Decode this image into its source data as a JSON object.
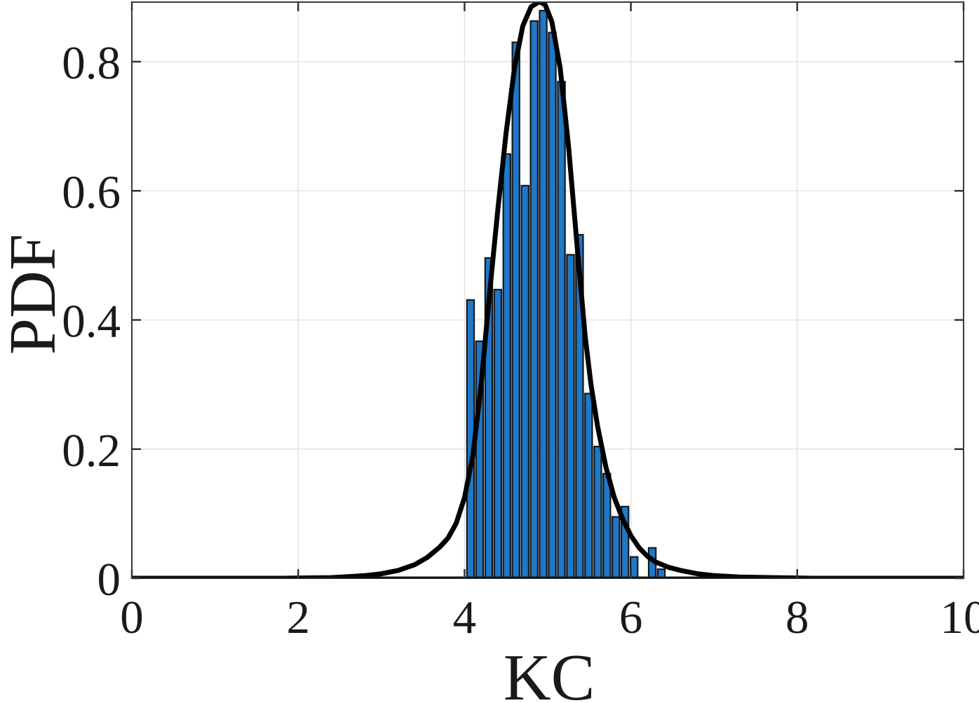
{
  "figure": {
    "kind": "matlab-style histogram with fitted pdf curve",
    "background": "#ffffff"
  },
  "chart_data": {
    "type": "bar",
    "subtype": "histogram-with-fit-line",
    "title": "",
    "xlabel": "KC",
    "ylabel": "PDF",
    "xlim": [
      0,
      10
    ],
    "ylim": [
      0,
      0.892
    ],
    "grid": true,
    "legend": "none",
    "x_ticks": [
      {
        "v": 0,
        "label": "0"
      },
      {
        "v": 2,
        "label": "2"
      },
      {
        "v": 4,
        "label": "4"
      },
      {
        "v": 6,
        "label": "6"
      },
      {
        "v": 8,
        "label": "8"
      },
      {
        "v": 10,
        "label": "10"
      }
    ],
    "y_ticks": [
      {
        "v": 0.0,
        "label": "0"
      },
      {
        "v": 0.2,
        "label": "0.2"
      },
      {
        "v": 0.4,
        "label": "0.4"
      },
      {
        "v": 0.6,
        "label": "0.6"
      },
      {
        "v": 0.8,
        "label": "0.8"
      }
    ],
    "bin_width": 0.109,
    "bars": [
      {
        "x": 4.018,
        "h": 0.431
      },
      {
        "x": 4.127,
        "h": 0.367
      },
      {
        "x": 4.237,
        "h": 0.496
      },
      {
        "x": 4.346,
        "h": 0.447
      },
      {
        "x": 4.455,
        "h": 0.657
      },
      {
        "x": 4.564,
        "h": 0.83
      },
      {
        "x": 4.674,
        "h": 0.608
      },
      {
        "x": 4.783,
        "h": 0.863
      },
      {
        "x": 4.892,
        "h": 0.879
      },
      {
        "x": 5.001,
        "h": 0.845
      },
      {
        "x": 5.111,
        "h": 0.769
      },
      {
        "x": 5.22,
        "h": 0.501
      },
      {
        "x": 5.329,
        "h": 0.532
      },
      {
        "x": 5.438,
        "h": 0.286
      },
      {
        "x": 5.548,
        "h": 0.204
      },
      {
        "x": 5.657,
        "h": 0.162
      },
      {
        "x": 5.766,
        "h": 0.095
      },
      {
        "x": 5.875,
        "h": 0.111
      },
      {
        "x": 5.985,
        "h": 0.033
      },
      {
        "x": 6.094,
        "h": 0.0
      },
      {
        "x": 6.203,
        "h": 0.047
      },
      {
        "x": 6.312,
        "h": 0.014
      }
    ],
    "fit_curve": {
      "name": "fitted-pdf-curve",
      "peak": {
        "x": 4.9,
        "y": 0.893
      },
      "points": [
        [
          0,
          0
        ],
        [
          1.8,
          0
        ],
        [
          2.4,
          0.001
        ],
        [
          2.8,
          0.004
        ],
        [
          3.0,
          0.007
        ],
        [
          3.2,
          0.012
        ],
        [
          3.4,
          0.021
        ],
        [
          3.55,
          0.032
        ],
        [
          3.7,
          0.048
        ],
        [
          3.8,
          0.062
        ],
        [
          3.9,
          0.085
        ],
        [
          4.0,
          0.125
        ],
        [
          4.1,
          0.19
        ],
        [
          4.2,
          0.3
        ],
        [
          4.3,
          0.44
        ],
        [
          4.4,
          0.57
        ],
        [
          4.5,
          0.69
        ],
        [
          4.6,
          0.79
        ],
        [
          4.7,
          0.855
        ],
        [
          4.8,
          0.885
        ],
        [
          4.9,
          0.893
        ],
        [
          4.97,
          0.888
        ],
        [
          5.05,
          0.862
        ],
        [
          5.15,
          0.79
        ],
        [
          5.25,
          0.67
        ],
        [
          5.35,
          0.52
        ],
        [
          5.45,
          0.375
        ],
        [
          5.52,
          0.3
        ],
        [
          5.6,
          0.235
        ],
        [
          5.7,
          0.172
        ],
        [
          5.8,
          0.125
        ],
        [
          5.9,
          0.092
        ],
        [
          6.0,
          0.066
        ],
        [
          6.1,
          0.047
        ],
        [
          6.2,
          0.034
        ],
        [
          6.3,
          0.025
        ],
        [
          6.45,
          0.017
        ],
        [
          6.6,
          0.012
        ],
        [
          6.8,
          0.007
        ],
        [
          7.0,
          0.004
        ],
        [
          7.3,
          0.002
        ],
        [
          7.7,
          0.001
        ],
        [
          8.2,
          0
        ],
        [
          10,
          0
        ]
      ]
    },
    "colors": {
      "bar_fill": "#1f78c8",
      "bar_edge": "#14181d",
      "curve": "#000000",
      "grid": "#e3e3e3",
      "border": "#3a3a3a",
      "axis_bottom": "#151515",
      "tick": "#333333",
      "text": "#1a1a1a",
      "background": "#ffffff"
    }
  }
}
